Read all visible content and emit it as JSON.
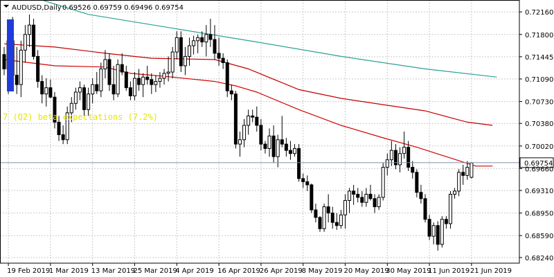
{
  "window": {
    "title": "AUDUSD,Daily",
    "ohlc_text": "0.69526 0.69759 0.69496 0.69754"
  },
  "colors": {
    "background": "#ffffff",
    "grid": "#c9c9c9",
    "candle_up_fill": "#ffffff",
    "candle_down_fill": "#000000",
    "candle_border": "#000000",
    "ma_fast": "#d40000",
    "ma_medium": "#c00000",
    "ma_slow": "#2aa198",
    "price_line": "#7f8fa6",
    "price_label_bg": "#ffffff",
    "annotation": "#e6e600",
    "highlight": "#1f3bdb"
  },
  "chart_data": {
    "type": "candlestick",
    "symbol": "AUDUSD",
    "timeframe": "Daily",
    "title": "AUDUSD,Daily",
    "ylim": [
      0.6815,
      0.7235
    ],
    "y_ticks": [
      "0.72160",
      "0.71800",
      "0.71445",
      "0.71090",
      "0.70730",
      "0.70380",
      "0.70020",
      "0.69660",
      "0.69310",
      "0.68950",
      "0.68590",
      "0.68240"
    ],
    "current_price": "0.69754",
    "x_labels": [
      "19 Feb 2019",
      "1 Mar 2019",
      "13 Mar 2019",
      "25 Mar 2019",
      "4 Apr 2019",
      "16 Apr 2019",
      "26 Apr 2019",
      "8 May 2019",
      "20 May 2019",
      "30 May 2019",
      "11 Jun 2019",
      "21 Jun 2019"
    ],
    "x_label_index": [
      1,
      11,
      21,
      31,
      41,
      51,
      61,
      71,
      81,
      91,
      101,
      111
    ],
    "annotation": "7 (Q2) beta expectations (7.2%)",
    "candles": [
      {
        "o": 0.7148,
        "h": 0.716,
        "l": 0.7115,
        "c": 0.7125
      },
      {
        "o": 0.7125,
        "h": 0.718,
        "l": 0.7085,
        "c": 0.717
      },
      {
        "o": 0.717,
        "h": 0.7208,
        "l": 0.71,
        "c": 0.7115
      },
      {
        "o": 0.7115,
        "h": 0.716,
        "l": 0.7085,
        "c": 0.71
      },
      {
        "o": 0.71,
        "h": 0.717,
        "l": 0.708,
        "c": 0.7155
      },
      {
        "o": 0.7155,
        "h": 0.7195,
        "l": 0.7135,
        "c": 0.718
      },
      {
        "o": 0.718,
        "h": 0.7212,
        "l": 0.716,
        "c": 0.7195
      },
      {
        "o": 0.7195,
        "h": 0.7205,
        "l": 0.714,
        "c": 0.7145
      },
      {
        "o": 0.7145,
        "h": 0.7155,
        "l": 0.7095,
        "c": 0.7105
      },
      {
        "o": 0.7105,
        "h": 0.7115,
        "l": 0.707,
        "c": 0.7085
      },
      {
        "o": 0.7085,
        "h": 0.711,
        "l": 0.7065,
        "c": 0.7095
      },
      {
        "o": 0.7095,
        "h": 0.7108,
        "l": 0.7078,
        "c": 0.708
      },
      {
        "o": 0.708,
        "h": 0.7088,
        "l": 0.703,
        "c": 0.704
      },
      {
        "o": 0.704,
        "h": 0.705,
        "l": 0.701,
        "c": 0.702
      },
      {
        "o": 0.702,
        "h": 0.7035,
        "l": 0.7005,
        "c": 0.7012
      },
      {
        "o": 0.7012,
        "h": 0.7065,
        "l": 0.7005,
        "c": 0.7055
      },
      {
        "o": 0.7055,
        "h": 0.708,
        "l": 0.704,
        "c": 0.707
      },
      {
        "o": 0.707,
        "h": 0.7095,
        "l": 0.706,
        "c": 0.7088
      },
      {
        "o": 0.7088,
        "h": 0.7105,
        "l": 0.7075,
        "c": 0.7095
      },
      {
        "o": 0.7095,
        "h": 0.71,
        "l": 0.705,
        "c": 0.706
      },
      {
        "o": 0.706,
        "h": 0.7095,
        "l": 0.705,
        "c": 0.7085
      },
      {
        "o": 0.7085,
        "h": 0.711,
        "l": 0.707,
        "c": 0.71
      },
      {
        "o": 0.71,
        "h": 0.712,
        "l": 0.7085,
        "c": 0.709
      },
      {
        "o": 0.709,
        "h": 0.7135,
        "l": 0.708,
        "c": 0.7125
      },
      {
        "o": 0.7125,
        "h": 0.7155,
        "l": 0.711,
        "c": 0.714
      },
      {
        "o": 0.714,
        "h": 0.715,
        "l": 0.709,
        "c": 0.71
      },
      {
        "o": 0.71,
        "h": 0.713,
        "l": 0.7075,
        "c": 0.7085
      },
      {
        "o": 0.7085,
        "h": 0.714,
        "l": 0.708,
        "c": 0.7132
      },
      {
        "o": 0.7132,
        "h": 0.715,
        "l": 0.7115,
        "c": 0.712
      },
      {
        "o": 0.712,
        "h": 0.713,
        "l": 0.709,
        "c": 0.7095
      },
      {
        "o": 0.7095,
        "h": 0.7105,
        "l": 0.7075,
        "c": 0.7082
      },
      {
        "o": 0.7082,
        "h": 0.712,
        "l": 0.7075,
        "c": 0.711
      },
      {
        "o": 0.711,
        "h": 0.7125,
        "l": 0.709,
        "c": 0.71
      },
      {
        "o": 0.71,
        "h": 0.7118,
        "l": 0.708,
        "c": 0.7112
      },
      {
        "o": 0.7112,
        "h": 0.713,
        "l": 0.71,
        "c": 0.7108
      },
      {
        "o": 0.7108,
        "h": 0.7118,
        "l": 0.7085,
        "c": 0.71
      },
      {
        "o": 0.71,
        "h": 0.7115,
        "l": 0.7088,
        "c": 0.7105
      },
      {
        "o": 0.7105,
        "h": 0.712,
        "l": 0.7095,
        "c": 0.711
      },
      {
        "o": 0.711,
        "h": 0.7125,
        "l": 0.71,
        "c": 0.7118
      },
      {
        "o": 0.7118,
        "h": 0.7145,
        "l": 0.7105,
        "c": 0.712
      },
      {
        "o": 0.712,
        "h": 0.716,
        "l": 0.711,
        "c": 0.7152
      },
      {
        "o": 0.7152,
        "h": 0.7185,
        "l": 0.714,
        "c": 0.7175
      },
      {
        "o": 0.7175,
        "h": 0.7185,
        "l": 0.712,
        "c": 0.713
      },
      {
        "o": 0.713,
        "h": 0.716,
        "l": 0.7115,
        "c": 0.7145
      },
      {
        "o": 0.7145,
        "h": 0.7175,
        "l": 0.713,
        "c": 0.7162
      },
      {
        "o": 0.7162,
        "h": 0.7178,
        "l": 0.7148,
        "c": 0.717
      },
      {
        "o": 0.717,
        "h": 0.718,
        "l": 0.715,
        "c": 0.7175
      },
      {
        "o": 0.7175,
        "h": 0.7185,
        "l": 0.716,
        "c": 0.7168
      },
      {
        "o": 0.7168,
        "h": 0.7195,
        "l": 0.7145,
        "c": 0.718
      },
      {
        "o": 0.718,
        "h": 0.7205,
        "l": 0.716,
        "c": 0.7172
      },
      {
        "o": 0.7172,
        "h": 0.7195,
        "l": 0.714,
        "c": 0.715
      },
      {
        "o": 0.715,
        "h": 0.7175,
        "l": 0.713,
        "c": 0.7142
      },
      {
        "o": 0.7142,
        "h": 0.715,
        "l": 0.7125,
        "c": 0.7135
      },
      {
        "o": 0.7135,
        "h": 0.714,
        "l": 0.708,
        "c": 0.709
      },
      {
        "o": 0.709,
        "h": 0.71,
        "l": 0.7075,
        "c": 0.7085
      },
      {
        "o": 0.7085,
        "h": 0.709,
        "l": 0.6998,
        "c": 0.7005
      },
      {
        "o": 0.7005,
        "h": 0.7025,
        "l": 0.6985,
        "c": 0.7012
      },
      {
        "o": 0.7012,
        "h": 0.7045,
        "l": 0.7,
        "c": 0.7035
      },
      {
        "o": 0.7035,
        "h": 0.706,
        "l": 0.702,
        "c": 0.705
      },
      {
        "o": 0.705,
        "h": 0.706,
        "l": 0.704,
        "c": 0.7048
      },
      {
        "o": 0.7048,
        "h": 0.7065,
        "l": 0.7025,
        "c": 0.7035
      },
      {
        "o": 0.7035,
        "h": 0.7045,
        "l": 0.6995,
        "c": 0.7005
      },
      {
        "o": 0.7005,
        "h": 0.701,
        "l": 0.699,
        "c": 0.6998
      },
      {
        "o": 0.6998,
        "h": 0.703,
        "l": 0.6985,
        "c": 0.7018
      },
      {
        "o": 0.7018,
        "h": 0.7035,
        "l": 0.6975,
        "c": 0.6985
      },
      {
        "o": 0.6985,
        "h": 0.702,
        "l": 0.6968,
        "c": 0.7012
      },
      {
        "o": 0.7012,
        "h": 0.705,
        "l": 0.7,
        "c": 0.7005
      },
      {
        "o": 0.7005,
        "h": 0.7015,
        "l": 0.6985,
        "c": 0.6995
      },
      {
        "o": 0.6995,
        "h": 0.701,
        "l": 0.698,
        "c": 0.699
      },
      {
        "o": 0.699,
        "h": 0.7005,
        "l": 0.6985,
        "c": 0.6998
      },
      {
        "o": 0.6998,
        "h": 0.7005,
        "l": 0.6945,
        "c": 0.695
      },
      {
        "o": 0.695,
        "h": 0.6958,
        "l": 0.6935,
        "c": 0.6945
      },
      {
        "o": 0.6945,
        "h": 0.6955,
        "l": 0.693,
        "c": 0.694
      },
      {
        "o": 0.694,
        "h": 0.6942,
        "l": 0.6895,
        "c": 0.69
      },
      {
        "o": 0.69,
        "h": 0.691,
        "l": 0.688,
        "c": 0.6888
      },
      {
        "o": 0.6888,
        "h": 0.689,
        "l": 0.6865,
        "c": 0.687
      },
      {
        "o": 0.687,
        "h": 0.691,
        "l": 0.6865,
        "c": 0.6905
      },
      {
        "o": 0.6905,
        "h": 0.6925,
        "l": 0.688,
        "c": 0.6895
      },
      {
        "o": 0.6895,
        "h": 0.6905,
        "l": 0.687,
        "c": 0.688
      },
      {
        "o": 0.688,
        "h": 0.6895,
        "l": 0.6868,
        "c": 0.6875
      },
      {
        "o": 0.6875,
        "h": 0.69,
        "l": 0.687,
        "c": 0.6892
      },
      {
        "o": 0.6892,
        "h": 0.6925,
        "l": 0.687,
        "c": 0.6915
      },
      {
        "o": 0.6915,
        "h": 0.6935,
        "l": 0.6895,
        "c": 0.693
      },
      {
        "o": 0.693,
        "h": 0.694,
        "l": 0.6908,
        "c": 0.6925
      },
      {
        "o": 0.6925,
        "h": 0.6935,
        "l": 0.6912,
        "c": 0.692
      },
      {
        "o": 0.692,
        "h": 0.693,
        "l": 0.6905,
        "c": 0.6912
      },
      {
        "o": 0.6912,
        "h": 0.6935,
        "l": 0.6905,
        "c": 0.6925
      },
      {
        "o": 0.6925,
        "h": 0.694,
        "l": 0.6915,
        "c": 0.6918
      },
      {
        "o": 0.6918,
        "h": 0.6925,
        "l": 0.6895,
        "c": 0.6905
      },
      {
        "o": 0.6905,
        "h": 0.6925,
        "l": 0.69,
        "c": 0.692
      },
      {
        "o": 0.692,
        "h": 0.6975,
        "l": 0.6915,
        "c": 0.6968
      },
      {
        "o": 0.6968,
        "h": 0.699,
        "l": 0.6955,
        "c": 0.698
      },
      {
        "o": 0.698,
        "h": 0.701,
        "l": 0.697,
        "c": 0.6995
      },
      {
        "o": 0.6995,
        "h": 0.7005,
        "l": 0.6965,
        "c": 0.6972
      },
      {
        "o": 0.6972,
        "h": 0.7,
        "l": 0.696,
        "c": 0.699
      },
      {
        "o": 0.699,
        "h": 0.7025,
        "l": 0.6982,
        "c": 0.7
      },
      {
        "o": 0.7,
        "h": 0.701,
        "l": 0.6962,
        "c": 0.6968
      },
      {
        "o": 0.6968,
        "h": 0.6978,
        "l": 0.695,
        "c": 0.696
      },
      {
        "o": 0.696,
        "h": 0.6965,
        "l": 0.692,
        "c": 0.6928
      },
      {
        "o": 0.6928,
        "h": 0.694,
        "l": 0.691,
        "c": 0.6918
      },
      {
        "o": 0.6918,
        "h": 0.6925,
        "l": 0.688,
        "c": 0.6885
      },
      {
        "o": 0.6885,
        "h": 0.6892,
        "l": 0.6852,
        "c": 0.6858
      },
      {
        "o": 0.6858,
        "h": 0.688,
        "l": 0.6845,
        "c": 0.6875
      },
      {
        "o": 0.6875,
        "h": 0.6882,
        "l": 0.6835,
        "c": 0.6845
      },
      {
        "o": 0.6845,
        "h": 0.689,
        "l": 0.684,
        "c": 0.6885
      },
      {
        "o": 0.6885,
        "h": 0.689,
        "l": 0.687,
        "c": 0.6878
      },
      {
        "o": 0.6878,
        "h": 0.693,
        "l": 0.687,
        "c": 0.6925
      },
      {
        "o": 0.6925,
        "h": 0.6935,
        "l": 0.6918,
        "c": 0.693
      },
      {
        "o": 0.693,
        "h": 0.6965,
        "l": 0.6922,
        "c": 0.696
      },
      {
        "o": 0.696,
        "h": 0.6972,
        "l": 0.694,
        "c": 0.6955
      },
      {
        "o": 0.6955,
        "h": 0.6978,
        "l": 0.6948,
        "c": 0.6968
      },
      {
        "o": 0.6952,
        "h": 0.6976,
        "l": 0.695,
        "c": 0.6975
      }
    ],
    "ma_slow": [
      [
        9,
        0.7235
      ],
      [
        20,
        0.7212
      ],
      [
        40,
        0.719
      ],
      [
        60,
        0.7168
      ],
      [
        80,
        0.7145
      ],
      [
        100,
        0.7125
      ],
      [
        117,
        0.7112
      ]
    ],
    "ma_medium": [
      [
        0,
        0.7165
      ],
      [
        12,
        0.716
      ],
      [
        24,
        0.715
      ],
      [
        35,
        0.7142
      ],
      [
        50,
        0.714
      ],
      [
        58,
        0.7125
      ],
      [
        70,
        0.7092
      ],
      [
        80,
        0.7078
      ],
      [
        90,
        0.7068
      ],
      [
        100,
        0.7058
      ],
      [
        110,
        0.704
      ],
      [
        116,
        0.7035
      ]
    ],
    "ma_fast": [
      [
        0,
        0.714
      ],
      [
        12,
        0.713
      ],
      [
        24,
        0.7128
      ],
      [
        30,
        0.7118
      ],
      [
        40,
        0.7112
      ],
      [
        50,
        0.7105
      ],
      [
        55,
        0.7098
      ],
      [
        60,
        0.7088
      ],
      [
        70,
        0.706
      ],
      [
        80,
        0.7035
      ],
      [
        90,
        0.7015
      ],
      [
        98,
        0.7
      ],
      [
        105,
        0.6985
      ],
      [
        112,
        0.697
      ],
      [
        116,
        0.697
      ]
    ]
  }
}
